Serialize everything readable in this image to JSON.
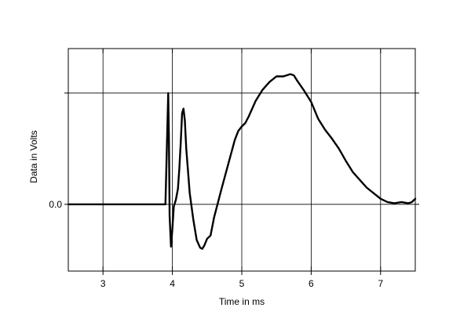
{
  "chart_data": {
    "type": "line",
    "title": "",
    "xlabel": "Time in ms",
    "ylabel": "Data in Volts",
    "xlim": [
      2.5,
      7.5
    ],
    "ylim": [
      -0.6,
      1.4
    ],
    "x_ticks": [
      3,
      4,
      5,
      6,
      7
    ],
    "x_tick_labels": [
      "3",
      "4",
      "5",
      "6",
      "7"
    ],
    "y_ticks": [
      0.0
    ],
    "y_tick_labels": [
      "0.0"
    ],
    "y_gridlines": [
      0.0,
      1.0
    ],
    "grid": true,
    "legend": "none",
    "series": [
      {
        "color": "#000000",
        "x": [
          2.5,
          3.0,
          3.5,
          3.9,
          3.92,
          3.94,
          3.95,
          3.96,
          3.98,
          4.0,
          4.02,
          4.05,
          4.08,
          4.1,
          4.12,
          4.14,
          4.16,
          4.18,
          4.2,
          4.25,
          4.3,
          4.35,
          4.4,
          4.43,
          4.46,
          4.5,
          4.55,
          4.6,
          4.65,
          4.7,
          4.8,
          4.9,
          4.95,
          5.0,
          5.05,
          5.1,
          5.2,
          5.3,
          5.4,
          5.5,
          5.6,
          5.7,
          5.75,
          5.8,
          5.9,
          6.0,
          6.1,
          6.2,
          6.3,
          6.4,
          6.5,
          6.6,
          6.7,
          6.8,
          6.9,
          7.0,
          7.1,
          7.2,
          7.3,
          7.4,
          7.45,
          7.5
        ],
        "values": [
          0.0,
          0.0,
          0.0,
          0.0,
          0.5,
          1.0,
          0.6,
          -0.1,
          -0.38,
          -0.22,
          -0.02,
          0.04,
          0.14,
          0.32,
          0.55,
          0.82,
          0.86,
          0.75,
          0.5,
          0.1,
          -0.13,
          -0.32,
          -0.39,
          -0.4,
          -0.37,
          -0.31,
          -0.28,
          -0.12,
          0.0,
          0.12,
          0.35,
          0.58,
          0.66,
          0.7,
          0.73,
          0.79,
          0.93,
          1.03,
          1.1,
          1.15,
          1.15,
          1.17,
          1.16,
          1.11,
          1.02,
          0.92,
          0.77,
          0.67,
          0.59,
          0.5,
          0.39,
          0.29,
          0.22,
          0.15,
          0.1,
          0.05,
          0.02,
          0.01,
          0.02,
          0.01,
          0.02,
          0.05
        ]
      }
    ]
  }
}
